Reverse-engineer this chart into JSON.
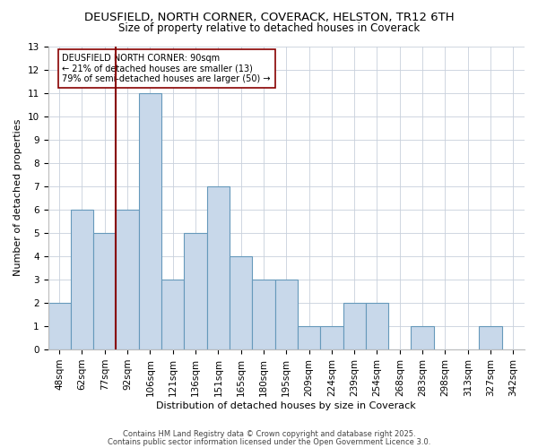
{
  "title_line1": "DEUSFIELD, NORTH CORNER, COVERACK, HELSTON, TR12 6TH",
  "title_line2": "Size of property relative to detached houses in Coverack",
  "xlabel": "Distribution of detached houses by size in Coverack",
  "ylabel": "Number of detached properties",
  "categories": [
    "48sqm",
    "62sqm",
    "77sqm",
    "92sqm",
    "106sqm",
    "121sqm",
    "136sqm",
    "151sqm",
    "165sqm",
    "180sqm",
    "195sqm",
    "209sqm",
    "224sqm",
    "239sqm",
    "254sqm",
    "268sqm",
    "283sqm",
    "298sqm",
    "313sqm",
    "327sqm",
    "342sqm"
  ],
  "values": [
    2,
    6,
    5,
    6,
    11,
    3,
    5,
    7,
    4,
    3,
    3,
    1,
    1,
    2,
    2,
    0,
    1,
    0,
    0,
    1,
    0
  ],
  "bar_color": "#c8d8ea",
  "bar_edge_color": "#6699bb",
  "bar_edge_width": 0.8,
  "property_line_index": 3.0,
  "property_line_color": "#880000",
  "ylim": [
    0,
    13
  ],
  "yticks": [
    0,
    1,
    2,
    3,
    4,
    5,
    6,
    7,
    8,
    9,
    10,
    11,
    12,
    13
  ],
  "annotation_text": "DEUSFIELD NORTH CORNER: 90sqm\n← 21% of detached houses are smaller (13)\n79% of semi-detached houses are larger (50) →",
  "annotation_box_color": "#ffffff",
  "annotation_box_edge": "#880000",
  "footer1": "Contains HM Land Registry data © Crown copyright and database right 2025.",
  "footer2": "Contains public sector information licensed under the Open Government Licence 3.0.",
  "background_color": "#ffffff",
  "grid_color": "#c8d0dc",
  "title_fontsize": 9.5,
  "subtitle_fontsize": 8.5,
  "axis_label_fontsize": 8,
  "tick_fontsize": 7.5,
  "annotation_fontsize": 7,
  "footer_fontsize": 6
}
